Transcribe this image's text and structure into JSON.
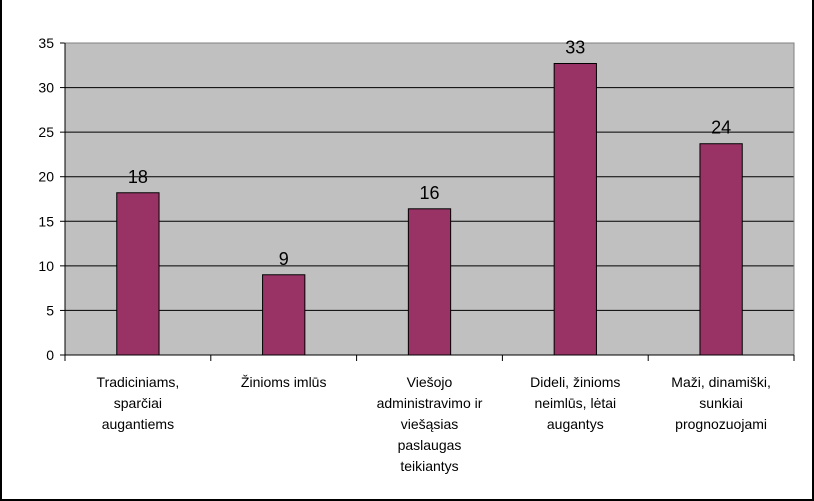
{
  "chart_data": {
    "type": "bar",
    "categories": [
      [
        "Tradiciniams,",
        "sparčiai",
        "augantiems"
      ],
      [
        "Žinioms imlūs"
      ],
      [
        "Viešojo",
        "administravimo ir",
        "viešąsias",
        "paslaugas",
        "teikiantys"
      ],
      [
        "Dideli, žinioms",
        "neimlūs, lėtai",
        "augantys"
      ],
      [
        "Maži, dinamiški,",
        "sunkiai",
        "prognozuojami"
      ]
    ],
    "values": [
      18.2,
      9,
      16.4,
      32.7,
      23.7
    ],
    "data_labels": [
      "18",
      "9",
      "16",
      "33",
      "24"
    ],
    "ylim": [
      0,
      35
    ],
    "yticks": [
      "0",
      "5",
      "10",
      "15",
      "20",
      "25",
      "30",
      "35"
    ],
    "grid": true,
    "colors": {
      "bar": "#993366",
      "plot_background": "#c0c0c0",
      "gridline": "#000000"
    }
  }
}
